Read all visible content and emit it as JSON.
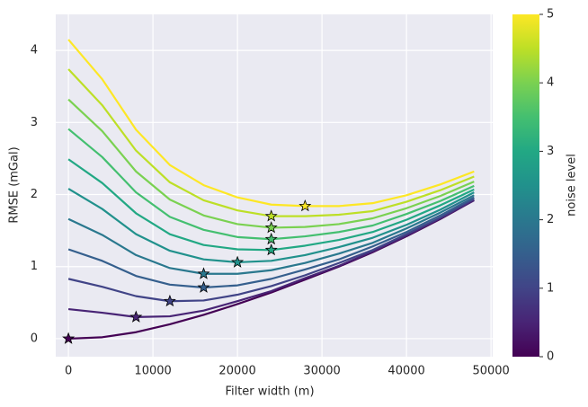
{
  "chart_data": {
    "type": "line",
    "x_label": "Filter width (m)",
    "y_label": "RMSE (mGal)",
    "x": [
      0,
      4000,
      8000,
      12000,
      16000,
      20000,
      24000,
      28000,
      32000,
      36000,
      40000,
      44000,
      48000
    ],
    "xlim": [
      -1500,
      50200
    ],
    "xticks": [
      0,
      10000,
      20000,
      30000,
      40000,
      50000
    ],
    "ylim": [
      -0.25,
      4.5
    ],
    "yticks": [
      0,
      1,
      2,
      3,
      4
    ],
    "grid": true,
    "mark_minima": true,
    "series": [
      {
        "color": "#440154",
        "values": [
          0,
          0.02,
          0.09,
          0.2,
          0.33,
          0.48,
          0.64,
          0.82,
          1.0,
          1.2,
          1.42,
          1.66,
          1.92
        ]
      },
      {
        "color": "#482475",
        "values": [
          0.41,
          0.36,
          0.3,
          0.31,
          0.39,
          0.52,
          0.66,
          0.84,
          1.01,
          1.21,
          1.43,
          1.67,
          1.92
        ]
      },
      {
        "color": "#414487",
        "values": [
          0.83,
          0.72,
          0.59,
          0.52,
          0.53,
          0.61,
          0.73,
          0.88,
          1.05,
          1.23,
          1.45,
          1.68,
          1.94
        ]
      },
      {
        "color": "#355f8d",
        "values": [
          1.24,
          1.08,
          0.87,
          0.75,
          0.71,
          0.74,
          0.83,
          0.96,
          1.1,
          1.28,
          1.48,
          1.71,
          1.96
        ]
      },
      {
        "color": "#2a788e",
        "values": [
          1.66,
          1.44,
          1.16,
          0.98,
          0.9,
          0.9,
          0.95,
          1.05,
          1.18,
          1.33,
          1.53,
          1.75,
          1.99
        ]
      },
      {
        "color": "#21918c",
        "values": [
          2.08,
          1.8,
          1.45,
          1.22,
          1.1,
          1.06,
          1.08,
          1.16,
          1.27,
          1.4,
          1.58,
          1.79,
          2.03
        ]
      },
      {
        "color": "#22a884",
        "values": [
          2.49,
          2.16,
          1.74,
          1.45,
          1.3,
          1.24,
          1.23,
          1.29,
          1.37,
          1.48,
          1.65,
          1.85,
          2.07
        ]
      },
      {
        "color": "#44bf70",
        "values": [
          2.91,
          2.52,
          2.03,
          1.69,
          1.51,
          1.41,
          1.38,
          1.42,
          1.48,
          1.57,
          1.73,
          1.91,
          2.12
        ]
      },
      {
        "color": "#7ad151",
        "values": [
          3.32,
          2.88,
          2.32,
          1.93,
          1.71,
          1.59,
          1.54,
          1.55,
          1.59,
          1.67,
          1.81,
          1.98,
          2.18
        ]
      },
      {
        "color": "#bddf26",
        "values": [
          3.74,
          3.24,
          2.61,
          2.17,
          1.92,
          1.78,
          1.7,
          1.7,
          1.72,
          1.77,
          1.9,
          2.06,
          2.25
        ]
      },
      {
        "color": "#fde725",
        "values": [
          4.15,
          3.6,
          2.9,
          2.41,
          2.13,
          1.96,
          1.86,
          1.84,
          1.84,
          1.88,
          1.99,
          2.14,
          2.32
        ]
      }
    ],
    "colorbar": {
      "label": "noise level",
      "lim": [
        0,
        5
      ],
      "ticks": [
        0,
        1,
        2,
        3,
        4,
        5
      ],
      "colors": [
        "#440154",
        "#482475",
        "#414487",
        "#355f8d",
        "#2a788e",
        "#21918c",
        "#22a884",
        "#44bf70",
        "#7ad151",
        "#bddf26",
        "#fde725"
      ]
    }
  }
}
